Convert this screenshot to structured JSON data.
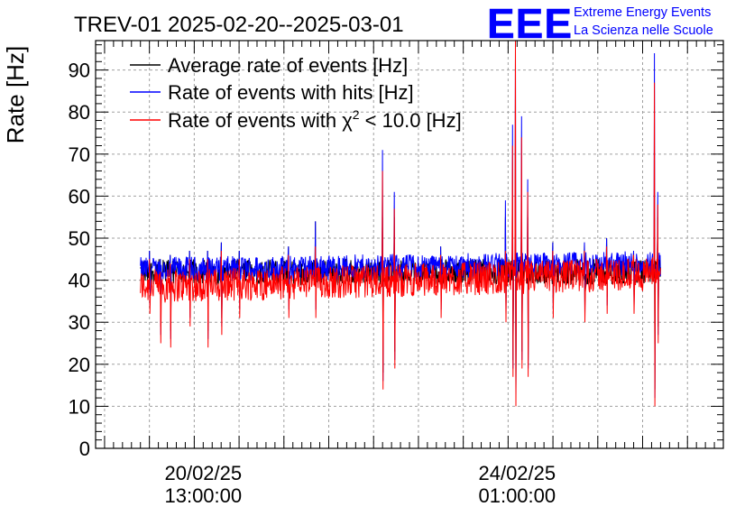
{
  "chart_data": {
    "type": "line",
    "title": "TREV-01 2025-02-20--2025-03-01",
    "ylabel": "Rate [Hz]",
    "xlabel": "",
    "ylim": [
      0,
      97
    ],
    "y_ticks": [
      0,
      10,
      20,
      30,
      40,
      50,
      60,
      70,
      80,
      90
    ],
    "x_ticks": [
      {
        "date": "20/02/25",
        "time": "13:00:00",
        "x": 0.1
      },
      {
        "date": "24/02/25",
        "time": "01:00:00",
        "x": 3.6
      }
    ],
    "x_range": [
      -1.1,
      5.9
    ],
    "data_range": [
      -0.6,
      5.2
    ],
    "grid": true,
    "legend": {
      "position": "top-left",
      "entries": [
        {
          "label": "Average rate of events [Hz]",
          "color": "#000000"
        },
        {
          "label": "Rate of events with hits [Hz]",
          "color": "#0000ff"
        },
        {
          "label": "Rate of events with χ² < 10.0 [Hz]",
          "label_main": "Rate of events with χ",
          "label_sup": "2",
          "label_tail": " < 10.0 [Hz]",
          "color": "#ff0000"
        }
      ]
    },
    "series": [
      {
        "name": "Average rate of events [Hz]",
        "color": "#000000",
        "baseline": 42,
        "noise": 3
      },
      {
        "name": "Rate of events with hits [Hz]",
        "color": "#0000ff",
        "baseline_start": 42.5,
        "baseline_end": 44,
        "noise": 3
      },
      {
        "name": "Rate of events with χ² < 10.0 [Hz]",
        "color": "#ff0000",
        "baseline_start": 38.5,
        "baseline_end": 41.5,
        "noise": 4
      }
    ],
    "spikes": [
      {
        "x": -0.5,
        "blue": 47,
        "red": 45,
        "low": 32
      },
      {
        "x": -0.38,
        "blue": 45,
        "red": 42,
        "low": 25
      },
      {
        "x": -0.27,
        "blue": 46,
        "red": 44,
        "low": 24
      },
      {
        "x": -0.05,
        "blue": 47,
        "red": 45,
        "low": 29
      },
      {
        "x": 0.15,
        "blue": 47,
        "red": 45,
        "low": 24
      },
      {
        "x": 0.3,
        "blue": 49,
        "red": 47,
        "low": 27
      },
      {
        "x": 0.5,
        "blue": 47,
        "red": 45,
        "low": 31
      },
      {
        "x": 1.05,
        "blue": 48,
        "red": 46,
        "low": 31
      },
      {
        "x": 1.35,
        "blue": 54,
        "red": 48,
        "low": 31
      },
      {
        "x": 2.1,
        "blue": 71,
        "red": 66,
        "low": 14
      },
      {
        "x": 2.23,
        "blue": 61,
        "red": 57,
        "low": 19
      },
      {
        "x": 2.75,
        "blue": 48,
        "red": 46,
        "low": 31
      },
      {
        "x": 3.47,
        "blue": 59,
        "red": 47,
        "low": 30
      },
      {
        "x": 3.55,
        "blue": 77,
        "red": 72,
        "low": 17
      },
      {
        "x": 3.58,
        "blue": 94,
        "red": 97,
        "low": 10
      },
      {
        "x": 3.65,
        "blue": 79,
        "red": 74,
        "low": 19
      },
      {
        "x": 3.72,
        "blue": 64,
        "red": 61,
        "low": 17
      },
      {
        "x": 4.0,
        "blue": 49,
        "red": 47,
        "low": 31
      },
      {
        "x": 4.35,
        "blue": 49,
        "red": 47,
        "low": 30
      },
      {
        "x": 4.6,
        "blue": 50,
        "red": 48,
        "low": 32
      },
      {
        "x": 4.9,
        "blue": 47,
        "red": 46,
        "low": 32
      },
      {
        "x": 5.13,
        "blue": 94,
        "red": 87,
        "low": 10
      },
      {
        "x": 5.17,
        "blue": 61,
        "red": 58,
        "low": 25
      }
    ]
  },
  "logo": {
    "mark": "EEE",
    "line1": "Extreme Energy Events",
    "line2": "La Scienza nelle Scuole",
    "color": "#0000ff"
  }
}
